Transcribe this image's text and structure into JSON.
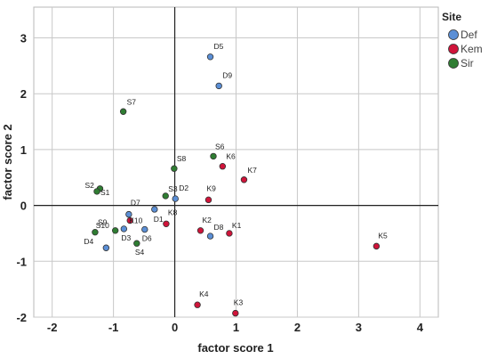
{
  "chart_data": {
    "type": "scatter",
    "xlabel": "factor score  1",
    "ylabel": "factor score  2",
    "xlim": [
      -2.3,
      4.3
    ],
    "ylim": [
      -2.0,
      3.55
    ],
    "x_ticks": [
      -2,
      -1,
      0,
      1,
      2,
      3,
      4
    ],
    "y_ticks": [
      -2,
      -1,
      0,
      1,
      2,
      3
    ],
    "grid": true,
    "reference_lines": {
      "x": 0,
      "y": 0
    },
    "legend": {
      "title": "Site",
      "placement": "top-right",
      "entries": [
        {
          "name": "Def",
          "color": "#5b8fd6"
        },
        {
          "name": "Kem",
          "color": "#d0143a"
        },
        {
          "name": "Sir",
          "color": "#2f7d32"
        }
      ]
    },
    "series": [
      {
        "name": "Def",
        "color": "#5b8fd6",
        "points": [
          {
            "label": "D5",
            "x": 0.58,
            "y": 2.66
          },
          {
            "label": "D9",
            "x": 0.72,
            "y": 2.14
          },
          {
            "label": "D2",
            "x": 0.01,
            "y": 0.12
          },
          {
            "label": "D7",
            "x": -0.75,
            "y": -0.16
          },
          {
            "label": "D1",
            "x": -0.33,
            "y": -0.07
          },
          {
            "label": "D8",
            "x": 0.58,
            "y": -0.55
          },
          {
            "label": "D3",
            "x": -0.83,
            "y": -0.42
          },
          {
            "label": "D6",
            "x": -0.49,
            "y": -0.43
          },
          {
            "label": "D4",
            "x": -1.12,
            "y": -0.76
          }
        ]
      },
      {
        "name": "Kem",
        "color": "#d0143a",
        "points": [
          {
            "label": "K6",
            "x": 0.78,
            "y": 0.7
          },
          {
            "label": "K7",
            "x": 1.13,
            "y": 0.46
          },
          {
            "label": "K9",
            "x": 0.55,
            "y": 0.1
          },
          {
            "label": "K8",
            "x": -0.14,
            "y": -0.33
          },
          {
            "label": "K10",
            "x": -0.73,
            "y": -0.27
          },
          {
            "label": "K2",
            "x": 0.42,
            "y": -0.45
          },
          {
            "label": "K1",
            "x": 0.89,
            "y": -0.5
          },
          {
            "label": "K5",
            "x": 3.29,
            "y": -0.73
          },
          {
            "label": "K4",
            "x": 0.37,
            "y": -1.78
          },
          {
            "label": "K3",
            "x": 0.99,
            "y": -1.93
          }
        ]
      },
      {
        "name": "Sir",
        "color": "#2f7d32",
        "points": [
          {
            "label": "S7",
            "x": -0.84,
            "y": 1.68
          },
          {
            "label": "S6",
            "x": 0.63,
            "y": 0.88
          },
          {
            "label": "S8",
            "x": -0.01,
            "y": 0.66
          },
          {
            "label": "S2",
            "x": -1.22,
            "y": 0.3
          },
          {
            "label": "S1",
            "x": -1.27,
            "y": 0.25
          },
          {
            "label": "S3",
            "x": -0.15,
            "y": 0.17
          },
          {
            "label": "S10",
            "x": -0.97,
            "y": -0.45
          },
          {
            "label": "S9",
            "x": -1.3,
            "y": -0.48
          },
          {
            "label": "S4",
            "x": -0.62,
            "y": -0.68
          }
        ]
      }
    ]
  }
}
